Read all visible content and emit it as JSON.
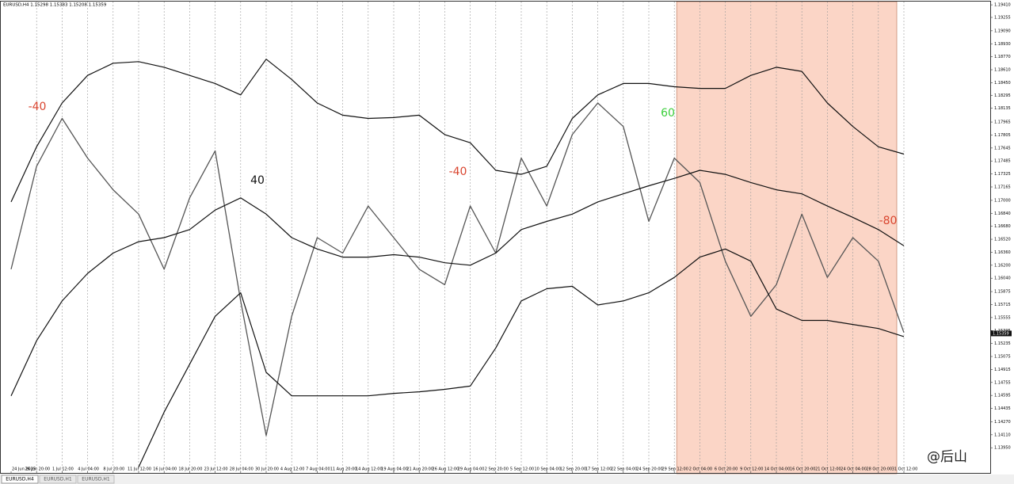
{
  "chart_data": {
    "type": "line",
    "title": "EURUSD,H4  1.15298 1.15383 1.15208 1.15359",
    "categories": [
      "24 Jun 2025",
      "26 Jun 20:00",
      "1 Jul 12:00",
      "4 Jul 04:00",
      "8 Jul 20:00",
      "11 Jul 12:00",
      "16 Jul 04:00",
      "18 Jul 20:00",
      "23 Jul 12:00",
      "28 Jul 04:00",
      "30 Jul 20:00",
      "4 Aug 12:00",
      "7 Aug 04:00",
      "11 Aug 20:00",
      "14 Aug 12:00",
      "19 Aug 04:00",
      "21 Aug 20:00",
      "26 Aug 12:00",
      "29 Aug 04:00",
      "2 Sep 20:00",
      "5 Sep 12:00",
      "10 Sep 04:00",
      "12 Sep 20:00",
      "17 Sep 12:00",
      "22 Sep 04:00",
      "24 Sep 20:00",
      "29 Sep 12:00",
      "2 Oct 04:00",
      "6 Oct 20:00",
      "9 Oct 12:00",
      "14 Oct 04:00",
      "16 Oct 20:00",
      "21 Oct 12:00",
      "24 Oct 04:00",
      "28 Oct 20:00",
      "31 Oct 12:00"
    ],
    "series": [
      {
        "name": "Price",
        "color": "#555555",
        "width": 1.3,
        "values": [
          1.1615,
          1.1742,
          1.1801,
          1.1752,
          1.1713,
          1.1683,
          1.1615,
          1.1703,
          1.1761,
          1.1576,
          1.141,
          1.1557,
          1.1654,
          1.1635,
          1.1693,
          1.1654,
          1.1615,
          1.1596,
          1.1693,
          1.1635,
          1.1752,
          1.1693,
          1.1781,
          1.182,
          1.1791,
          1.1674,
          1.1752,
          1.1722,
          1.1625,
          1.1557,
          1.1596,
          1.1683,
          1.1605,
          1.1654,
          1.1625,
          1.1537
        ]
      },
      {
        "name": "Upper Band",
        "color": "#111111",
        "width": 1.2,
        "values": [
          1.1698,
          1.1766,
          1.182,
          1.1854,
          1.1869,
          1.1871,
          1.1864,
          1.1854,
          1.1844,
          1.183,
          1.1874,
          1.1849,
          1.182,
          1.1805,
          1.1801,
          1.1802,
          1.1805,
          1.1781,
          1.1771,
          1.1737,
          1.1732,
          1.1742,
          1.1801,
          1.183,
          1.1844,
          1.1844,
          1.184,
          1.1838,
          1.1838,
          1.1854,
          1.1864,
          1.1859,
          1.182,
          1.1791,
          1.1766,
          1.1757
        ]
      },
      {
        "name": "Middle Band",
        "color": "#111111",
        "width": 1.2,
        "values": [
          1.1459,
          1.1527,
          1.1576,
          1.161,
          1.1635,
          1.1649,
          1.1654,
          1.1664,
          1.1688,
          1.1703,
          1.1683,
          1.1654,
          1.164,
          1.163,
          1.163,
          1.1633,
          1.163,
          1.1623,
          1.162,
          1.1635,
          1.1664,
          1.1674,
          1.1683,
          1.1698,
          1.1708,
          1.1718,
          1.1727,
          1.1737,
          1.1732,
          1.1722,
          1.1713,
          1.1708,
          1.1693,
          1.1679,
          1.1664,
          1.1644
        ]
      },
      {
        "name": "Lower Band",
        "color": "#111111",
        "width": 1.2,
        "values": [
          null,
          null,
          null,
          null,
          null,
          1.1371,
          1.1439,
          1.1498,
          1.1557,
          1.1586,
          1.1488,
          1.1459,
          1.1459,
          1.1459,
          1.1459,
          1.1462,
          1.1464,
          1.1467,
          1.1471,
          1.1518,
          1.1576,
          1.1591,
          1.1594,
          1.1571,
          1.1576,
          1.1586,
          1.1605,
          1.163,
          1.164,
          1.1625,
          1.1566,
          1.1552,
          1.1552,
          1.1547,
          1.1542,
          1.1532
        ]
      }
    ],
    "ylim": [
      1.1363,
      1.1945
    ],
    "yticks": [
      {
        "value": 1.1941,
        "label": "1.19410"
      },
      {
        "value": 1.19255,
        "label": "1.19255"
      },
      {
        "value": 1.1909,
        "label": "1.19090"
      },
      {
        "value": 1.1893,
        "label": "1.18930"
      },
      {
        "value": 1.1877,
        "label": "1.18770"
      },
      {
        "value": 1.1861,
        "label": "1.18610"
      },
      {
        "value": 1.1845,
        "label": "1.18450"
      },
      {
        "value": 1.18295,
        "label": "1.18295"
      },
      {
        "value": 1.18135,
        "label": "1.18135"
      },
      {
        "value": 1.17965,
        "label": "1.17965"
      },
      {
        "value": 1.17805,
        "label": "1.17805"
      },
      {
        "value": 1.17645,
        "label": "1.17645"
      },
      {
        "value": 1.17485,
        "label": "1.17485"
      },
      {
        "value": 1.17325,
        "label": "1.17325"
      },
      {
        "value": 1.17165,
        "label": "1.17165"
      },
      {
        "value": 1.17,
        "label": "1.17000"
      },
      {
        "value": 1.1684,
        "label": "1.16840"
      },
      {
        "value": 1.1668,
        "label": "1.16680"
      },
      {
        "value": 1.1652,
        "label": "1.16520"
      },
      {
        "value": 1.1636,
        "label": "1.16360"
      },
      {
        "value": 1.162,
        "label": "1.16200"
      },
      {
        "value": 1.1604,
        "label": "1.16040"
      },
      {
        "value": 1.15875,
        "label": "1.15875"
      },
      {
        "value": 1.15715,
        "label": "1.15715"
      },
      {
        "value": 1.15555,
        "label": "1.15555"
      },
      {
        "value": 1.15395,
        "label": "1.15395"
      },
      {
        "value": 1.15235,
        "label": "1.15235"
      },
      {
        "value": 1.15075,
        "label": "1.15075"
      },
      {
        "value": 1.14915,
        "label": "1.14915"
      },
      {
        "value": 1.14755,
        "label": "1.14755"
      },
      {
        "value": 1.14595,
        "label": "1.14595"
      },
      {
        "value": 1.14435,
        "label": "1.14435"
      },
      {
        "value": 1.1427,
        "label": "1.14270"
      },
      {
        "value": 1.1411,
        "label": "1.14110"
      },
      {
        "value": 1.1395,
        "label": "1.13950"
      }
    ],
    "last_price": {
      "value": 1.15359,
      "label": "1.15359"
    },
    "highlight": {
      "from": "29 Sep 12:00",
      "to": "31 Oct 12:00",
      "color": "#fbd5c6"
    },
    "grid": true,
    "annotations": [
      {
        "text": "-40",
        "color": "#d9452f"
      },
      {
        "text": "40",
        "color": "#111111"
      },
      {
        "text": "-40",
        "color": "#d9452f"
      },
      {
        "text": "60",
        "color": "#3ccf3c"
      },
      {
        "text": "-80",
        "color": "#d9452f"
      }
    ]
  },
  "tabs": [
    "EURUSD,H4",
    "EURUSD,H1",
    "EURUSD,H1"
  ],
  "watermark": "@后山"
}
